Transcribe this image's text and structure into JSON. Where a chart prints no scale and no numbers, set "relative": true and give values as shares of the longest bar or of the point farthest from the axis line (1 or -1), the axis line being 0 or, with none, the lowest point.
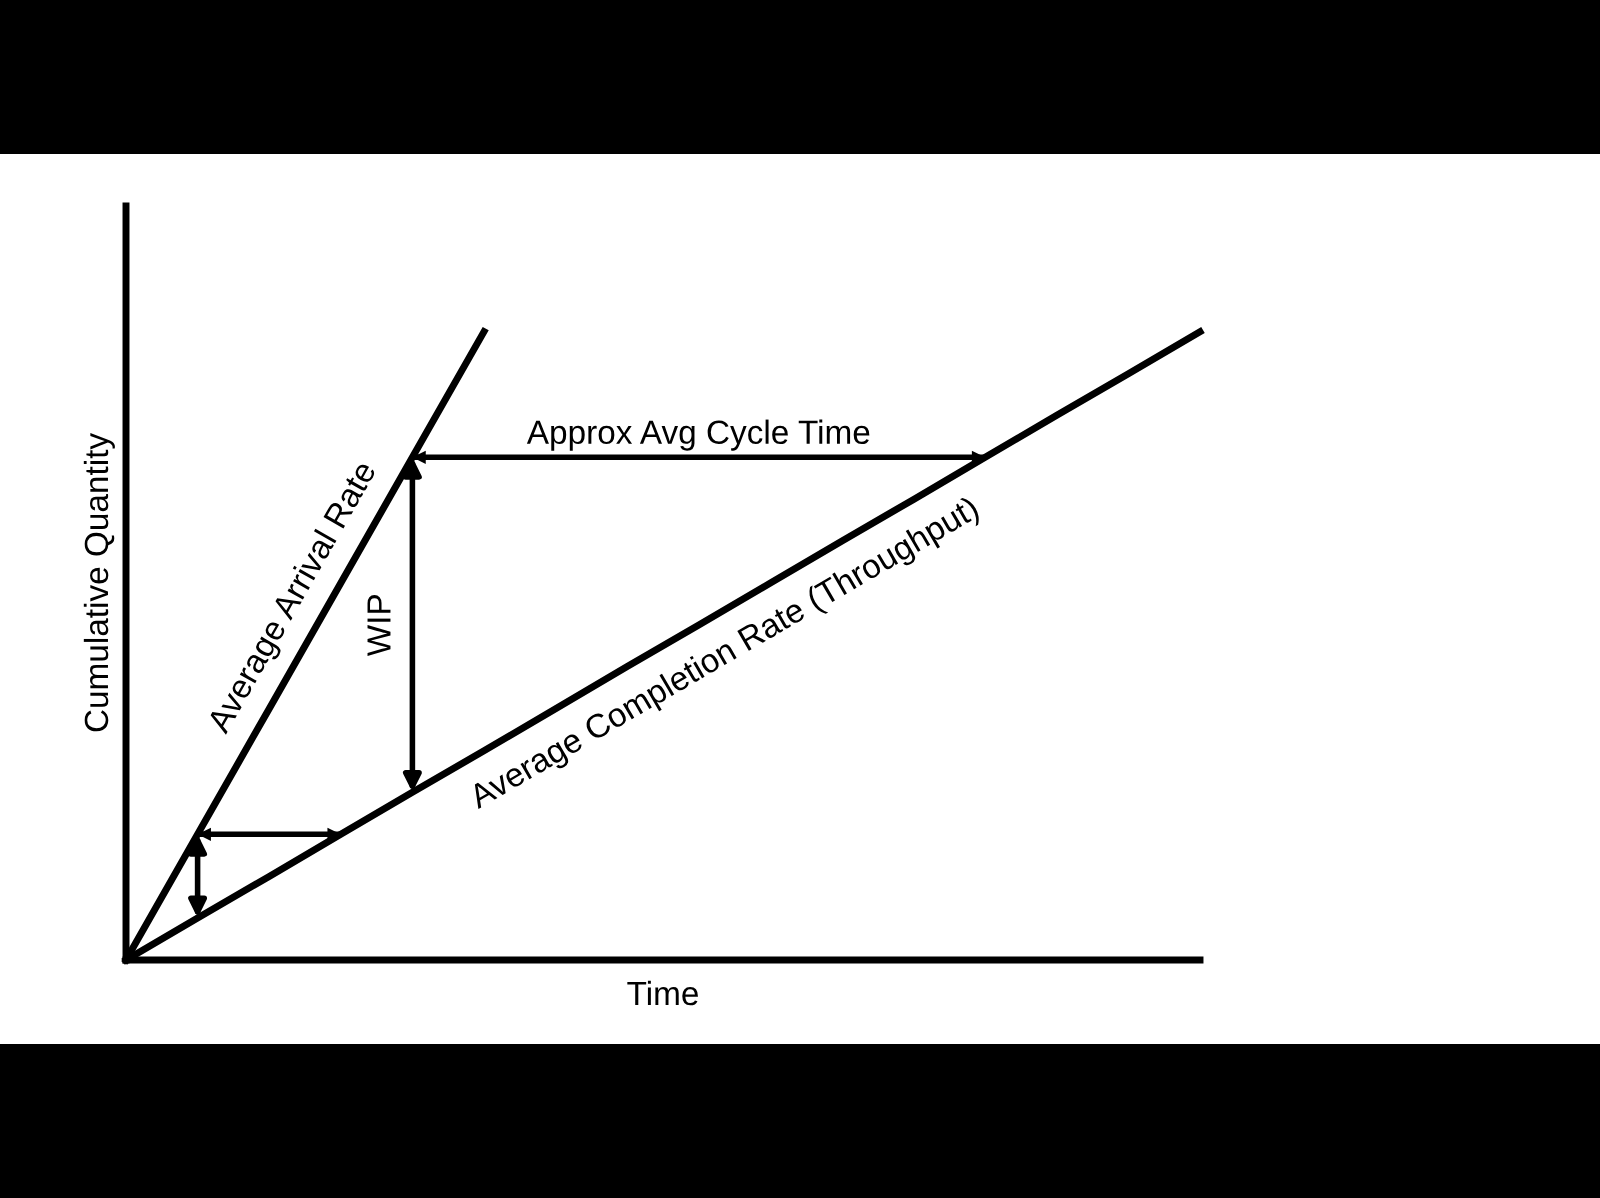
{
  "chart_data": {
    "type": "line",
    "relative": true,
    "xlabel": "Time",
    "ylabel": "Cumulative Quantity",
    "categories": [
      null,
      null,
      null,
      null,
      null,
      null,
      null,
      null,
      null,
      null,
      null,
      null,
      null,
      null,
      null,
      null
    ],
    "series": [
      {
        "name": "Average Arrival Rate",
        "color": "#000000",
        "values": [
          0,
          0.2,
          0.4,
          0.6,
          0.8,
          1.0,
          null,
          null,
          null,
          null,
          null,
          null,
          null,
          null,
          null,
          null
        ]
      },
      {
        "name": "Average Completion Rate (Throughput)",
        "color": "#000000",
        "values": [
          0,
          0.067,
          0.133,
          0.2,
          0.267,
          0.333,
          0.4,
          0.467,
          0.533,
          0.6,
          0.667,
          0.733,
          0.8,
          0.867,
          0.933,
          1.0
        ]
      },
      {
        "color": "#000000",
        "values": [
          null,
          0.2,
          0.2,
          0.2,
          null,
          null,
          null,
          null,
          null,
          null,
          null,
          null,
          null,
          null,
          null,
          null
        ]
      },
      {
        "color": "#000000",
        "values": [
          null,
          null,
          null,
          null,
          0.8,
          0.8,
          0.8,
          0.8,
          0.8,
          0.8,
          0.8,
          0.8,
          0.8,
          null,
          null,
          null
        ]
      }
    ],
    "annotations": [
      "Approx Avg Cycle Time",
      "WIP"
    ]
  }
}
